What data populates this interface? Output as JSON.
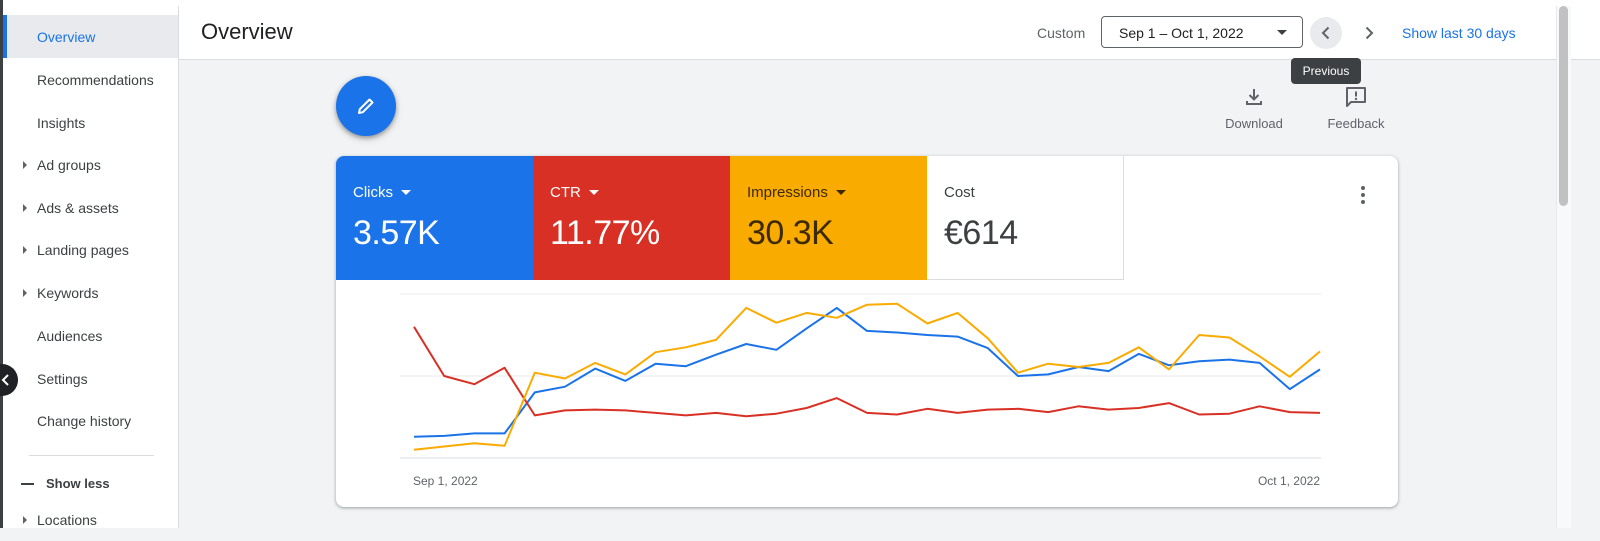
{
  "sidebar": {
    "items": [
      {
        "label": "Overview",
        "active": true,
        "caret": false
      },
      {
        "label": "Recommendations",
        "active": false,
        "caret": false
      },
      {
        "label": "Insights",
        "active": false,
        "caret": false
      },
      {
        "label": "Ad groups",
        "active": false,
        "caret": true
      },
      {
        "label": "Ads & assets",
        "active": false,
        "caret": true
      },
      {
        "label": "Landing pages",
        "active": false,
        "caret": true
      },
      {
        "label": "Keywords",
        "active": false,
        "caret": true
      },
      {
        "label": "Audiences",
        "active": false,
        "caret": false
      },
      {
        "label": "Settings",
        "active": false,
        "caret": false
      },
      {
        "label": "Change history",
        "active": false,
        "caret": false
      }
    ],
    "show_less": "Show less",
    "partial_item": "Locations"
  },
  "header": {
    "title": "Overview",
    "custom_label": "Custom",
    "date_range": "Sep 1 – Oct 1, 2022",
    "show_last": "Show last 30 days",
    "tooltip": "Previous"
  },
  "actions": {
    "download": "Download",
    "feedback": "Feedback"
  },
  "metrics": {
    "clicks": {
      "name": "Clicks",
      "value": "3.57K",
      "color": "#1a73e8"
    },
    "ctr": {
      "name": "CTR",
      "value": "11.77%",
      "color": "#d93025"
    },
    "impressions": {
      "name": "Impressions",
      "value": "30.3K",
      "color": "#f9ab00"
    },
    "cost": {
      "name": "Cost",
      "value": "€614"
    }
  },
  "chart_data": {
    "type": "line",
    "x_start_label": "Sep 1, 2022",
    "x_end_label": "Oct 1, 2022",
    "grid": true,
    "series": [
      {
        "name": "Clicks",
        "color": "#1a73e8",
        "values": [
          26,
          27,
          30,
          30,
          80,
          87,
          109,
          94,
          115,
          112,
          126,
          139,
          132,
          158,
          183,
          155,
          153,
          150,
          148,
          134,
          100,
          102,
          111,
          106,
          127,
          113,
          118,
          120,
          116,
          84,
          108
        ]
      },
      {
        "name": "CTR",
        "color": "#d93025",
        "values": [
          160,
          100,
          90,
          110,
          52,
          58,
          59,
          58,
          55,
          52,
          55,
          51,
          54,
          61,
          73,
          55,
          53,
          60,
          55,
          59,
          60,
          56,
          63,
          59,
          61,
          67,
          53,
          54,
          63,
          56,
          55
        ]
      },
      {
        "name": "Impressions",
        "color": "#f9ab00",
        "values": [
          10,
          14,
          18,
          15,
          104,
          97,
          116,
          102,
          129,
          135,
          144,
          183,
          165,
          177,
          171,
          187,
          188,
          164,
          177,
          146,
          104,
          115,
          111,
          116,
          135,
          108,
          150,
          147,
          124,
          99,
          130
        ]
      }
    ],
    "ylim": [
      0,
      200
    ]
  }
}
